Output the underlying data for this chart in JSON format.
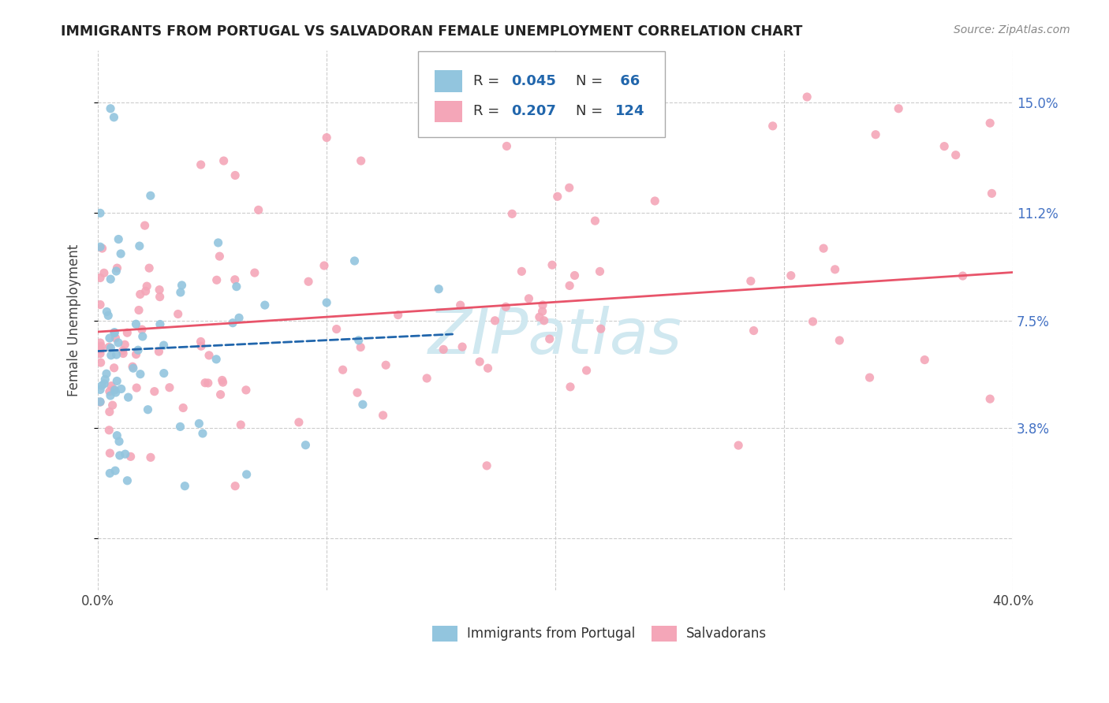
{
  "title": "IMMIGRANTS FROM PORTUGAL VS SALVADORAN FEMALE UNEMPLOYMENT CORRELATION CHART",
  "source": "Source: ZipAtlas.com",
  "ylabel": "Female Unemployment",
  "xlim": [
    0.0,
    0.4
  ],
  "ylim": [
    -0.018,
    0.168
  ],
  "color_blue": "#92c5de",
  "color_pink": "#f4a6b8",
  "color_blue_dark": "#2166ac",
  "color_pink_dark": "#d6604d",
  "color_pink_line": "#e8546a",
  "watermark_color": "#d0e8f0",
  "grid_color": "#cccccc",
  "ytick_color": "#4472c4",
  "xtick_label_color": "#555555",
  "title_color": "#222222",
  "source_color": "#888888",
  "legend_label_blue": "Immigrants from Portugal",
  "legend_label_pink": "Salvadorans"
}
